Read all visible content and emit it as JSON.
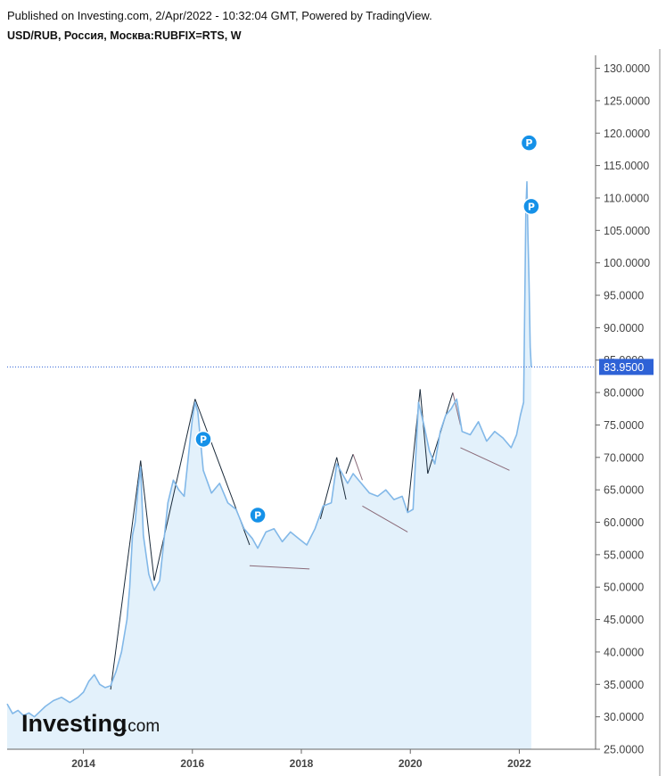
{
  "header": {
    "published": "Published on Investing.com, 2/Apr/2022 - 10:32:04 GMT, Powered by TradingView.",
    "symbol": "USD/RUB, Россия, Москва:RUBFIX=RTS, W"
  },
  "logo": {
    "brand": "Investing",
    "suffix": ".com"
  },
  "colors": {
    "line": "#82b8e8",
    "area": "#e3f1fb",
    "trend": "#1a2a3a",
    "trend_alt": "#8a6a78",
    "price_tag": "#2e62d6",
    "marker": "#1591e8",
    "axis": "#666666",
    "dotted_line": "#2e62d6"
  },
  "chart_data": {
    "type": "area",
    "title": "USD/RUB, Россия, Москва:RUBFIX=RTS, W",
    "xlabel": "",
    "ylabel": "",
    "ylim": [
      25,
      132
    ],
    "xlim": [
      2012.6,
      2023.4
    ],
    "grid": false,
    "y_ticks": [
      "130.0000",
      "125.0000",
      "120.0000",
      "115.0000",
      "110.0000",
      "105.0000",
      "100.0000",
      "95.0000",
      "90.0000",
      "85.0000",
      "80.0000",
      "75.0000",
      "70.0000",
      "65.0000",
      "60.0000",
      "55.0000",
      "50.0000",
      "45.0000",
      "40.0000",
      "35.0000",
      "30.0000",
      "25.0000"
    ],
    "x_ticks": [
      "2014",
      "2016",
      "2018",
      "2020",
      "2022"
    ],
    "last_price": "83.9500",
    "last_value": 83.95,
    "series": [
      {
        "x": [
          2012.6,
          2012.7,
          2012.8,
          2012.9,
          2013.0,
          2013.1,
          2013.2,
          2013.3,
          2013.45,
          2013.6,
          2013.75,
          2013.9,
          2014.0,
          2014.1,
          2014.2,
          2014.3,
          2014.4,
          2014.5,
          2014.6,
          2014.7,
          2014.8,
          2014.85,
          2014.9,
          2014.95,
          2015.0,
          2015.05,
          2015.1,
          2015.2,
          2015.3,
          2015.4,
          2015.45,
          2015.55,
          2015.65,
          2015.75,
          2015.85,
          2015.95,
          2016.0,
          2016.05,
          2016.1,
          2016.2,
          2016.35,
          2016.5,
          2016.65,
          2016.8,
          2016.95,
          2017.1,
          2017.2,
          2017.35,
          2017.5,
          2017.65,
          2017.8,
          2017.95,
          2018.1,
          2018.25,
          2018.4,
          2018.55,
          2018.65,
          2018.75,
          2018.85,
          2018.95,
          2019.1,
          2019.25,
          2019.4,
          2019.55,
          2019.7,
          2019.85,
          2019.95,
          2020.05,
          2020.15,
          2020.25,
          2020.35,
          2020.45,
          2020.55,
          2020.65,
          2020.75,
          2020.85,
          2020.95,
          2021.1,
          2021.25,
          2021.4,
          2021.55,
          2021.7,
          2021.85,
          2021.95,
          2022.02,
          2022.08,
          2022.12,
          2022.14,
          2022.16,
          2022.18,
          2022.2,
          2022.22
        ],
        "values": [
          32.0,
          30.5,
          31.0,
          30.2,
          30.6,
          30.0,
          30.8,
          31.6,
          32.5,
          33.0,
          32.2,
          33.0,
          33.8,
          35.5,
          36.5,
          35.0,
          34.5,
          34.8,
          37.0,
          40.0,
          45.0,
          50.0,
          58.0,
          60.0,
          65.0,
          68.5,
          58.0,
          52.0,
          49.5,
          51.0,
          55.0,
          63.0,
          66.5,
          65.0,
          64.0,
          72.0,
          76.0,
          78.5,
          77.0,
          68.0,
          64.5,
          66.0,
          63.0,
          62.0,
          59.0,
          57.5,
          56.0,
          58.5,
          59.0,
          57.0,
          58.5,
          57.5,
          56.5,
          59.0,
          62.5,
          63.0,
          69.0,
          67.5,
          66.0,
          67.5,
          66.0,
          64.5,
          64.0,
          65.0,
          63.5,
          64.0,
          61.5,
          62.0,
          78.5,
          75.0,
          71.0,
          69.0,
          74.0,
          76.5,
          77.5,
          79.0,
          74.0,
          73.5,
          75.5,
          72.5,
          74.0,
          73.0,
          71.5,
          73.5,
          76.5,
          78.5,
          108.0,
          112.5,
          104.0,
          97.0,
          87.0,
          83.95
        ]
      }
    ],
    "trend_lines": [
      {
        "x1": 2014.5,
        "y1": 34.2,
        "x2": 2015.05,
        "y2": 69.5
      },
      {
        "x1": 2015.05,
        "y1": 69.5,
        "x2": 2015.3,
        "y2": 51.0
      },
      {
        "x1": 2015.3,
        "y1": 51.0,
        "x2": 2016.05,
        "y2": 79.0
      },
      {
        "x1": 2016.05,
        "y1": 79.0,
        "x2": 2017.05,
        "y2": 56.5
      },
      {
        "x1": 2017.05,
        "y1": 53.3,
        "x2": 2018.15,
        "y2": 52.8
      },
      {
        "x1": 2018.35,
        "y1": 60.5,
        "x2": 2018.65,
        "y2": 70.0
      },
      {
        "x1": 2018.65,
        "y1": 70.0,
        "x2": 2018.82,
        "y2": 63.5
      },
      {
        "x1": 2018.82,
        "y1": 67.5,
        "x2": 2018.95,
        "y2": 70.5
      },
      {
        "x1": 2018.95,
        "y1": 70.5,
        "x2": 2019.12,
        "y2": 66.5
      },
      {
        "x1": 2019.12,
        "y1": 62.5,
        "x2": 2019.95,
        "y2": 58.5
      },
      {
        "x1": 2019.95,
        "y1": 61.5,
        "x2": 2020.18,
        "y2": 80.5
      },
      {
        "x1": 2020.18,
        "y1": 80.5,
        "x2": 2020.32,
        "y2": 67.5
      },
      {
        "x1": 2020.32,
        "y1": 67.5,
        "x2": 2020.78,
        "y2": 80.0
      },
      {
        "x1": 2020.78,
        "y1": 80.0,
        "x2": 2020.92,
        "y2": 75.0
      },
      {
        "x1": 2020.92,
        "y1": 71.5,
        "x2": 2021.82,
        "y2": 68.0
      }
    ],
    "markers": [
      {
        "label": "P",
        "x": 2016.2,
        "y": 72.8
      },
      {
        "label": "P",
        "x": 2017.2,
        "y": 61.1
      },
      {
        "label": "P",
        "x": 2022.18,
        "y": 118.5
      },
      {
        "label": "P",
        "x": 2022.22,
        "y": 108.7
      }
    ]
  }
}
